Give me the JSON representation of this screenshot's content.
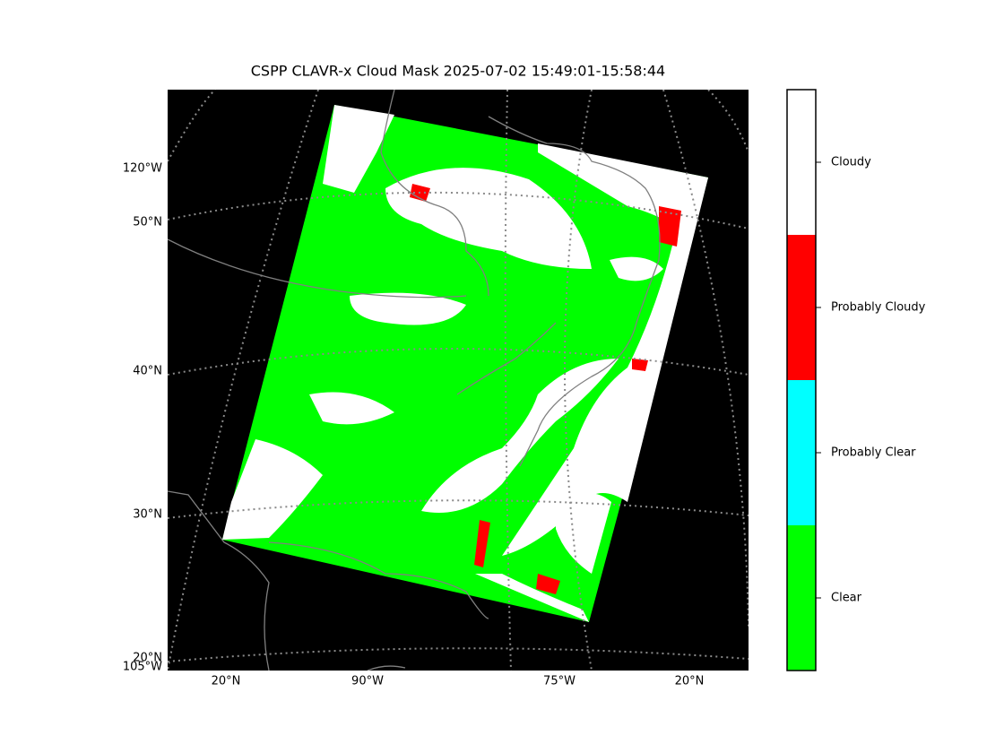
{
  "title": "CSPP CLAVR-x Cloud Mask 2025-07-02 15:49:01-15:58:44",
  "map": {
    "left_labels": [
      "120°W",
      "50°N",
      "40°N",
      "30°N",
      "20°N",
      "105°W"
    ],
    "bottom_labels": [
      "20°N",
      "90°W",
      "75°W",
      "20°N"
    ]
  },
  "colorbar": {
    "classes": [
      {
        "label": "Clear",
        "color": "#00ff00"
      },
      {
        "label": "Probably Clear",
        "color": "#00ffff"
      },
      {
        "label": "Probably Cloudy",
        "color": "#ff0000"
      },
      {
        "label": "Cloudy",
        "color": "#ffffff"
      }
    ]
  }
}
